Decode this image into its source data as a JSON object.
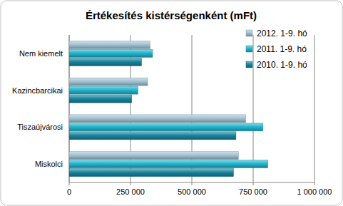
{
  "chart_data": {
    "type": "bar",
    "orientation": "horizontal",
    "title": "Értékesítés kistérségenként (mFt)",
    "categories": [
      "Miskolci",
      "Tiszaújvárosi",
      "Kazincbarcikai",
      "Nem kiemelt"
    ],
    "series": [
      {
        "name": "2012. 1-9. hó",
        "color": "#a3c4d4",
        "values": [
          690000,
          720000,
          320000,
          330000
        ]
      },
      {
        "name": "2011. 1-9. hó",
        "color": "#22b6cf",
        "values": [
          810000,
          790000,
          280000,
          340000
        ]
      },
      {
        "name": "2010. 1-9. hó",
        "color": "#1a86a0",
        "values": [
          670000,
          680000,
          255000,
          295000
        ]
      }
    ],
    "xlim": [
      0,
      1000000
    ],
    "xticks": [
      0,
      {
        "value": 250000,
        "label": "250 000"
      },
      {
        "value": 500000,
        "label": "500 000"
      },
      {
        "value": 750000,
        "label": "750 000"
      },
      {
        "value": 1000000,
        "label": "1 000 000"
      }
    ],
    "grid": true,
    "legend": "top-right"
  }
}
